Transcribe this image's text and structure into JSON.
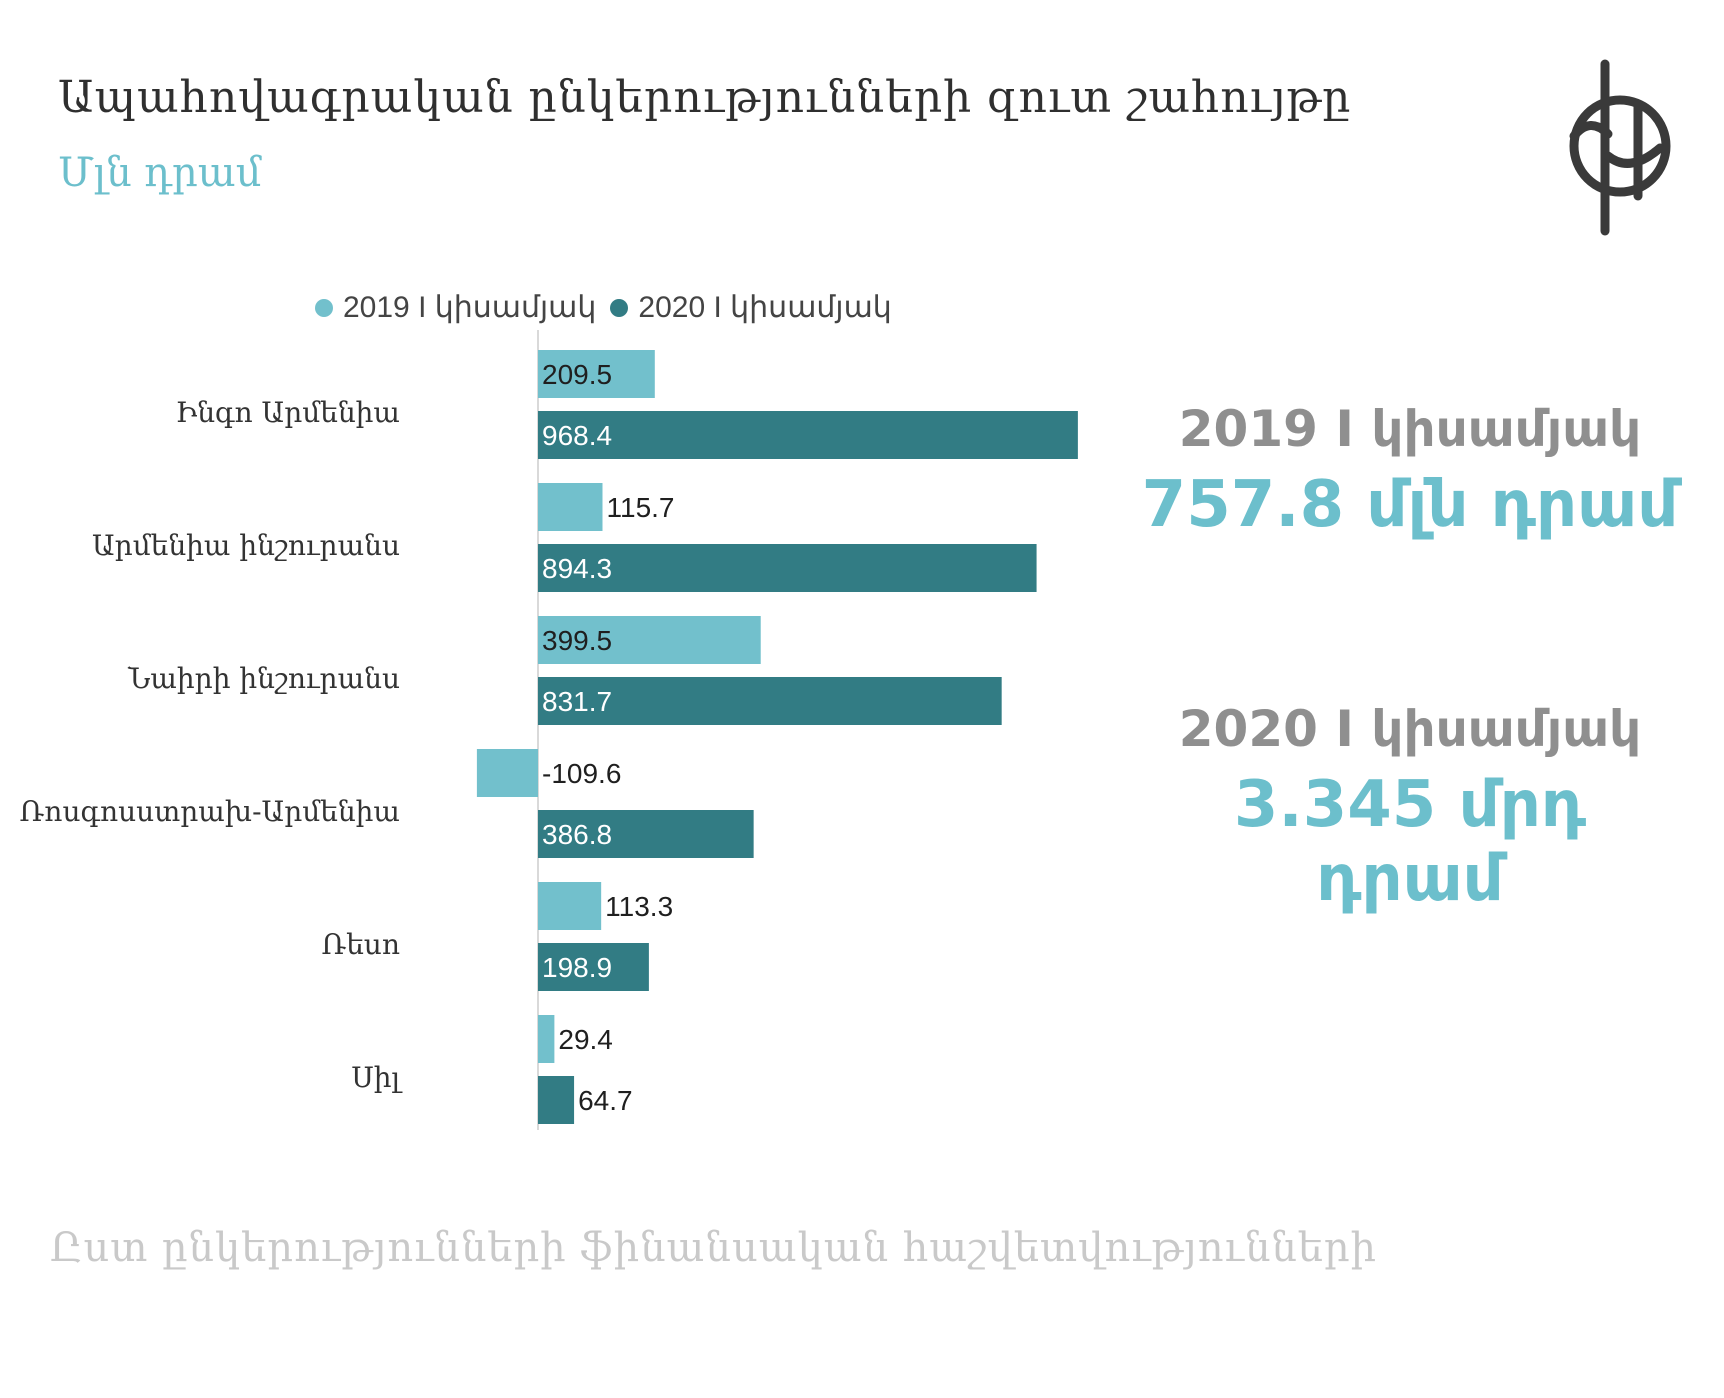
{
  "header": {
    "title": "Ապահովագրական ընկերությունների զուտ շահույթը",
    "subtitle": "Մլն  դրամ"
  },
  "legend": {
    "items": [
      {
        "label": "2019 I կիսամյակ",
        "color": "#72c0cc"
      },
      {
        "label": "2020 I կիսամյակ",
        "color": "#327c84"
      }
    ]
  },
  "summary": {
    "first": {
      "label": "2019 I կիսամյակ",
      "value": "757.8 մլն դրամ"
    },
    "second": {
      "label": "2020 I կիսամյակ",
      "value": "3.345 մրդ դրամ"
    }
  },
  "source": "Ըստ ընկերությունների ֆինանսական հաշվետվությունների",
  "colors": {
    "light": "#72c0cc",
    "dark": "#327c84",
    "accent": "#6cbfcc"
  },
  "chart_data": {
    "type": "bar",
    "orientation": "horizontal",
    "categories": [
      "Ինգո Արմենիա",
      "Արմենիա ինշուրանս",
      "Նաիրի ինշուրանս",
      "Ռոսգոսստրախ-Արմենիա",
      "Ռեսո",
      "Սիլ"
    ],
    "series": [
      {
        "name": "2019 I կիսամյակ",
        "values": [
          209.5,
          115.7,
          399.5,
          -109.6,
          113.3,
          29.4
        ]
      },
      {
        "name": "2020 I կիսամյակ",
        "values": [
          968.4,
          894.3,
          831.7,
          386.8,
          198.9,
          64.7
        ]
      }
    ],
    "legend": "top",
    "grid": false
  }
}
